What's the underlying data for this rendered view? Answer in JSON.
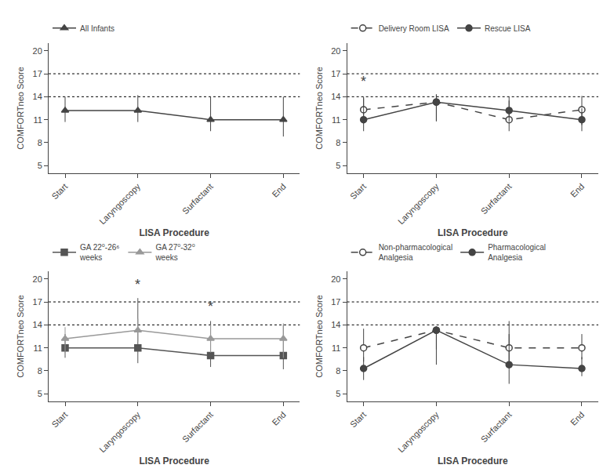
{
  "chart_data": [
    {
      "type": "line",
      "categories": [
        "Start",
        "Laryngoscopy",
        "Surfactant",
        "End"
      ],
      "xlabel": "LISA Procedure",
      "ylabel": "COMFORTneo Score",
      "ylim": [
        4,
        21
      ],
      "yticks": [
        5,
        8,
        11,
        14,
        17,
        20
      ],
      "grid": false,
      "hlines": [
        14,
        17
      ],
      "series": [
        {
          "name": "All Infants",
          "color": "#444444",
          "marker": "triangle-up",
          "line_style": "solid",
          "values": [
            12.2,
            12.2,
            11.0,
            11.0
          ],
          "error_lo": [
            1.5,
            1.5,
            1.5,
            2.2
          ],
          "error_hi": [
            1.8,
            2.0,
            3.0,
            3.0
          ]
        }
      ],
      "annotations": []
    },
    {
      "type": "line",
      "categories": [
        "Start",
        "Laryngoscopy",
        "Surfactant",
        "End"
      ],
      "xlabel": "LISA Procedure",
      "ylabel": "COMFORTneo Score",
      "ylim": [
        4,
        21
      ],
      "yticks": [
        5,
        8,
        11,
        14,
        17,
        20
      ],
      "grid": false,
      "hlines": [
        14,
        17
      ],
      "series": [
        {
          "name": "Delivery Room LISA",
          "color": "#444444",
          "marker": "circle-open",
          "line_style": "dashed",
          "values": [
            12.3,
            13.3,
            11.0,
            12.3
          ],
          "error_lo": [
            1.8,
            2.5,
            1.5,
            2.0
          ],
          "error_hi": [
            1.5,
            1.0,
            3.0,
            1.8
          ]
        },
        {
          "name": "Rescue LISA",
          "color": "#444444",
          "marker": "circle",
          "line_style": "solid",
          "values": [
            11.0,
            13.3,
            12.2,
            11.0
          ],
          "error_lo": [
            1.5,
            2.5,
            1.5,
            1.5
          ],
          "error_hi": [
            3.0,
            1.0,
            1.3,
            1.5
          ]
        }
      ],
      "annotations": [
        {
          "x": "Start",
          "y": 14.8,
          "text": "*"
        }
      ]
    },
    {
      "type": "line",
      "categories": [
        "Start",
        "Laryngoscopy",
        "Surfactant",
        "End"
      ],
      "xlabel": "LISA Procedure",
      "ylabel": "COMFORTneo Score",
      "ylim": [
        4,
        21
      ],
      "yticks": [
        5,
        8,
        11,
        14,
        17,
        20
      ],
      "grid": false,
      "hlines": [
        14,
        17
      ],
      "series": [
        {
          "name": "GA 22⁰-26⁶\nweeks",
          "color": "#555555",
          "marker": "square",
          "line_style": "solid",
          "values": [
            11.0,
            11.0,
            10.0,
            10.0
          ],
          "error_lo": [
            1.3,
            2.0,
            1.5,
            1.8
          ],
          "error_hi": [
            1.8,
            6.5,
            4.5,
            4.0
          ]
        },
        {
          "name": "GA 27⁰-32⁰\nweeks",
          "color": "#999999",
          "marker": "triangle-up",
          "line_style": "solid",
          "values": [
            12.2,
            13.3,
            12.2,
            12.2
          ],
          "error_lo": [
            1.8,
            1.5,
            1.8,
            2.5
          ],
          "error_hi": [
            1.5,
            1.5,
            1.8,
            2.0
          ]
        }
      ],
      "annotations": [
        {
          "x": "Laryngoscopy",
          "y": 18.0,
          "text": "*"
        },
        {
          "x": "Surfactant",
          "y": 15.2,
          "text": "*"
        }
      ]
    },
    {
      "type": "line",
      "categories": [
        "Start",
        "Laryngoscopy",
        "Surfactant",
        "End"
      ],
      "xlabel": "LISA Procedure",
      "ylabel": "COMFORTneo Score",
      "ylim": [
        4,
        21
      ],
      "yticks": [
        5,
        8,
        11,
        14,
        17,
        20
      ],
      "grid": false,
      "hlines": [
        14,
        17
      ],
      "series": [
        {
          "name": "Non-pharmacological\nAnalgesia",
          "color": "#444444",
          "marker": "circle-open",
          "line_style": "dashed",
          "values": [
            11.0,
            13.3,
            11.0,
            11.0
          ],
          "error_lo": [
            1.8,
            2.5,
            2.5,
            1.5
          ],
          "error_hi": [
            2.5,
            0.5,
            3.5,
            1.8
          ]
        },
        {
          "name": "Pharmacological\nAnalgesia",
          "color": "#444444",
          "marker": "circle",
          "line_style": "solid",
          "values": [
            8.3,
            13.3,
            8.8,
            8.3
          ],
          "error_lo": [
            1.5,
            4.5,
            2.5,
            1.0
          ],
          "error_hi": [
            1.5,
            0.5,
            4.0,
            1.5
          ]
        }
      ],
      "annotations": []
    }
  ]
}
